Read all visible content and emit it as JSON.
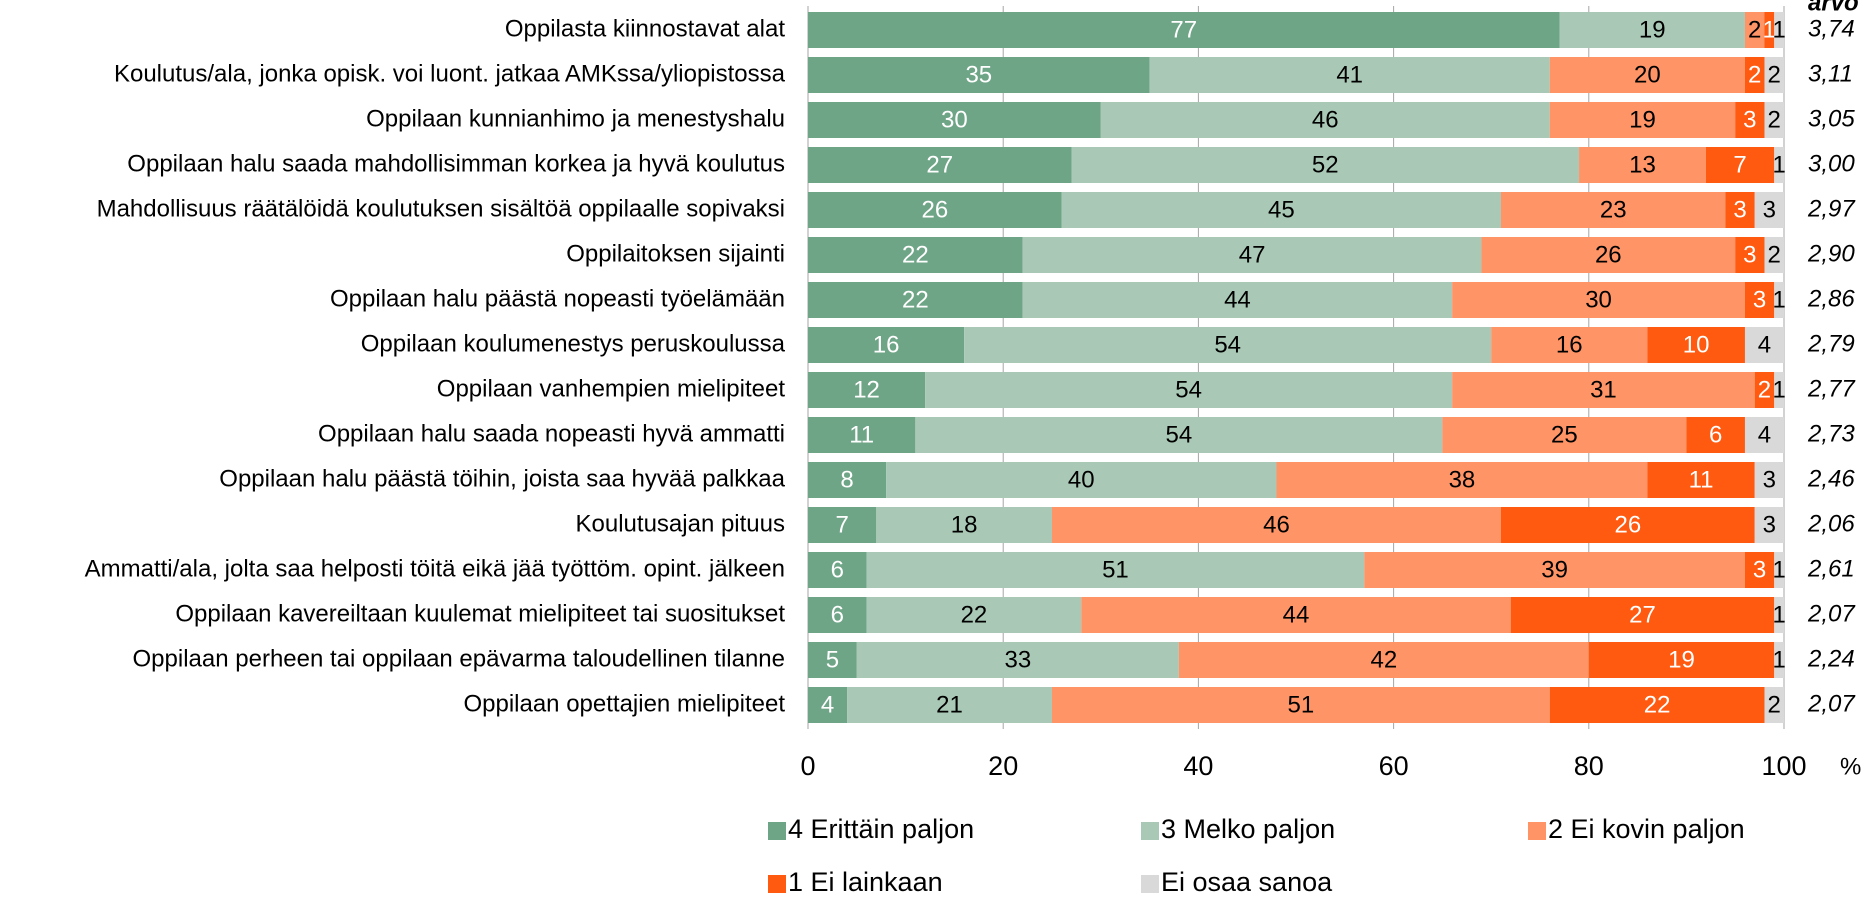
{
  "chart_data": {
    "type": "stacked-bar-horizontal",
    "categories": [
      "Oppilasta kiinnostavat alat",
      "Koulutus/ala, jonka opisk. voi luont. jatkaa AMKssa/yliopistossa",
      "Oppilaan kunnianhimo ja menestyshalu",
      "Oppilaan halu saada mahdollisimman korkea ja hyvä koulutus",
      "Mahdollisuus räätälöidä koulutuksen sisältöä oppilaalle sopivaksi",
      "Oppilaitoksen sijainti",
      "Oppilaan halu päästä nopeasti työelämään",
      "Oppilaan koulumenestys peruskoulussa",
      "Oppilaan vanhempien mielipiteet",
      "Oppilaan halu saada nopeasti hyvä ammatti",
      "Oppilaan halu päästä töihin, joista saa hyvää palkkaa",
      "Koulutusajan pituus",
      "Ammatti/ala, jolta saa helposti töitä eikä jää työttöm. opint. jälkeen",
      "Oppilaan kavereiltaan kuulemat mielipiteet tai suositukset",
      "Oppilaan perheen tai oppilaan epävarma taloudellinen tilanne",
      "Oppilaan opettajien mielipiteet"
    ],
    "series": [
      {
        "name": "4 Erittäin paljon",
        "color": "#6fa587",
        "label_color": "#ffffff",
        "values": [
          77,
          35,
          30,
          27,
          26,
          22,
          22,
          16,
          12,
          11,
          8,
          7,
          6,
          6,
          5,
          4
        ]
      },
      {
        "name": "3 Melko paljon",
        "color": "#a9c9b6",
        "label_color": "#000000",
        "values": [
          19,
          41,
          46,
          52,
          45,
          47,
          44,
          54,
          54,
          54,
          40,
          18,
          51,
          22,
          33,
          21
        ]
      },
      {
        "name": "2 Ei kovin paljon",
        "color": "#ff9466",
        "label_color": "#000000",
        "values": [
          2,
          20,
          19,
          13,
          23,
          26,
          30,
          16,
          31,
          25,
          38,
          46,
          39,
          44,
          42,
          51
        ]
      },
      {
        "name": "1 Ei lainkaan",
        "color": "#ff5a10",
        "label_color": "#ffffff",
        "values": [
          1,
          2,
          3,
          7,
          3,
          3,
          3,
          10,
          2,
          6,
          11,
          26,
          3,
          27,
          19,
          22
        ]
      },
      {
        "name": "Ei osaa sanoa",
        "color": "#d9d9d9",
        "label_color": "#000000",
        "values": [
          1,
          2,
          2,
          1,
          3,
          2,
          1,
          4,
          1,
          4,
          3,
          3,
          1,
          1,
          1,
          2
        ]
      }
    ],
    "mean_header": "arvo",
    "means": [
      "3,74",
      "3,11",
      "3,05",
      "3,00",
      "2,97",
      "2,90",
      "2,86",
      "2,79",
      "2,77",
      "2,73",
      "2,46",
      "2,06",
      "2,61",
      "2,07",
      "2,24",
      "2,07"
    ],
    "xlim": [
      0,
      100
    ],
    "xticks": [
      0,
      20,
      40,
      60,
      80,
      100
    ],
    "xlabel": "%",
    "grid": true
  }
}
